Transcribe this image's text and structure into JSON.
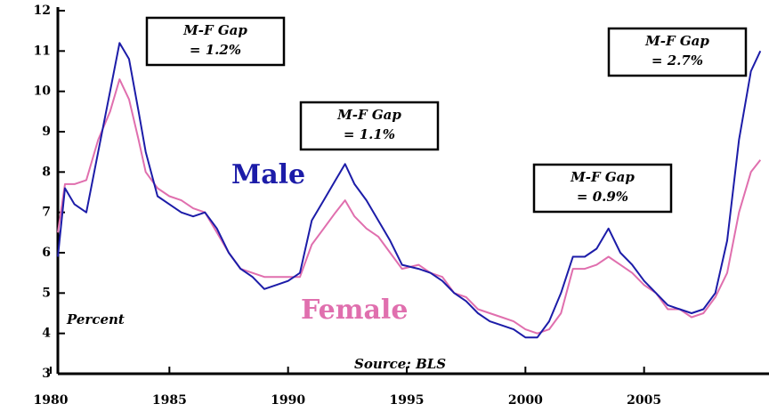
{
  "chart_data": {
    "type": "line",
    "y_label": "Percent",
    "source": "Source: BLS",
    "x": [
      1980.3,
      1980.6,
      1981.0,
      1981.5,
      1982.0,
      1982.5,
      1982.9,
      1983.3,
      1983.7,
      1984.0,
      1984.5,
      1985.0,
      1985.5,
      1986.0,
      1986.5,
      1987.0,
      1987.5,
      1988.0,
      1988.5,
      1989.0,
      1989.5,
      1990.0,
      1990.5,
      1991.0,
      1991.5,
      1992.0,
      1992.4,
      1992.8,
      1993.3,
      1993.8,
      1994.3,
      1994.8,
      1995.5,
      1996.0,
      1996.5,
      1997.0,
      1997.5,
      1998.0,
      1998.5,
      1999.0,
      1999.5,
      2000.0,
      2000.5,
      2001.0,
      2001.5,
      2002.0,
      2002.5,
      2003.0,
      2003.5,
      2004.0,
      2004.5,
      2005.0,
      2005.5,
      2006.0,
      2006.5,
      2007.0,
      2007.5,
      2008.0,
      2008.5,
      2009.0,
      2009.5,
      2009.9
    ],
    "series": [
      {
        "name": "Male",
        "color": "#1c1ca8",
        "values": [
          5.9,
          7.6,
          7.2,
          7.0,
          8.5,
          10.0,
          11.2,
          10.8,
          9.5,
          8.5,
          7.4,
          7.2,
          7.0,
          6.9,
          7.0,
          6.6,
          6.0,
          5.6,
          5.4,
          5.1,
          5.2,
          5.3,
          5.5,
          6.8,
          7.3,
          7.8,
          8.2,
          7.7,
          7.3,
          6.8,
          6.3,
          5.7,
          5.6,
          5.5,
          5.3,
          5.0,
          4.8,
          4.5,
          4.3,
          4.2,
          4.1,
          3.9,
          3.9,
          4.3,
          5.0,
          5.9,
          5.9,
          6.1,
          6.6,
          6.0,
          5.7,
          5.3,
          5.0,
          4.7,
          4.6,
          4.5,
          4.6,
          5.0,
          6.3,
          8.8,
          10.5,
          11.0
        ]
      },
      {
        "name": "Female",
        "color": "#e06fae",
        "values": [
          6.5,
          7.7,
          7.7,
          7.8,
          8.8,
          9.5,
          10.3,
          9.8,
          8.8,
          8.0,
          7.6,
          7.4,
          7.3,
          7.1,
          7.0,
          6.5,
          6.0,
          5.6,
          5.5,
          5.4,
          5.4,
          5.4,
          5.4,
          6.2,
          6.6,
          7.0,
          7.3,
          6.9,
          6.6,
          6.4,
          6.0,
          5.6,
          5.7,
          5.5,
          5.4,
          5.0,
          4.9,
          4.6,
          4.5,
          4.4,
          4.3,
          4.1,
          4.0,
          4.1,
          4.5,
          5.6,
          5.6,
          5.7,
          5.9,
          5.7,
          5.5,
          5.2,
          5.0,
          4.6,
          4.6,
          4.4,
          4.5,
          4.9,
          5.5,
          7.0,
          8.0,
          8.3
        ]
      }
    ],
    "annotations": [
      {
        "lines": [
          "M-F Gap",
          "= 1.2%"
        ]
      },
      {
        "lines": [
          "M-F Gap",
          "= 1.1%"
        ]
      },
      {
        "lines": [
          "M-F Gap",
          "= 0.9%"
        ]
      },
      {
        "lines": [
          "M-F Gap",
          "= 2.7%"
        ]
      }
    ],
    "xlim": [
      1980,
      2010
    ],
    "xticks": [
      1980,
      1985,
      1990,
      1995,
      2000,
      2005
    ],
    "ylim": [
      3,
      12
    ],
    "yticks": [
      3,
      4,
      5,
      6,
      7,
      8,
      9,
      10,
      11,
      12
    ]
  }
}
